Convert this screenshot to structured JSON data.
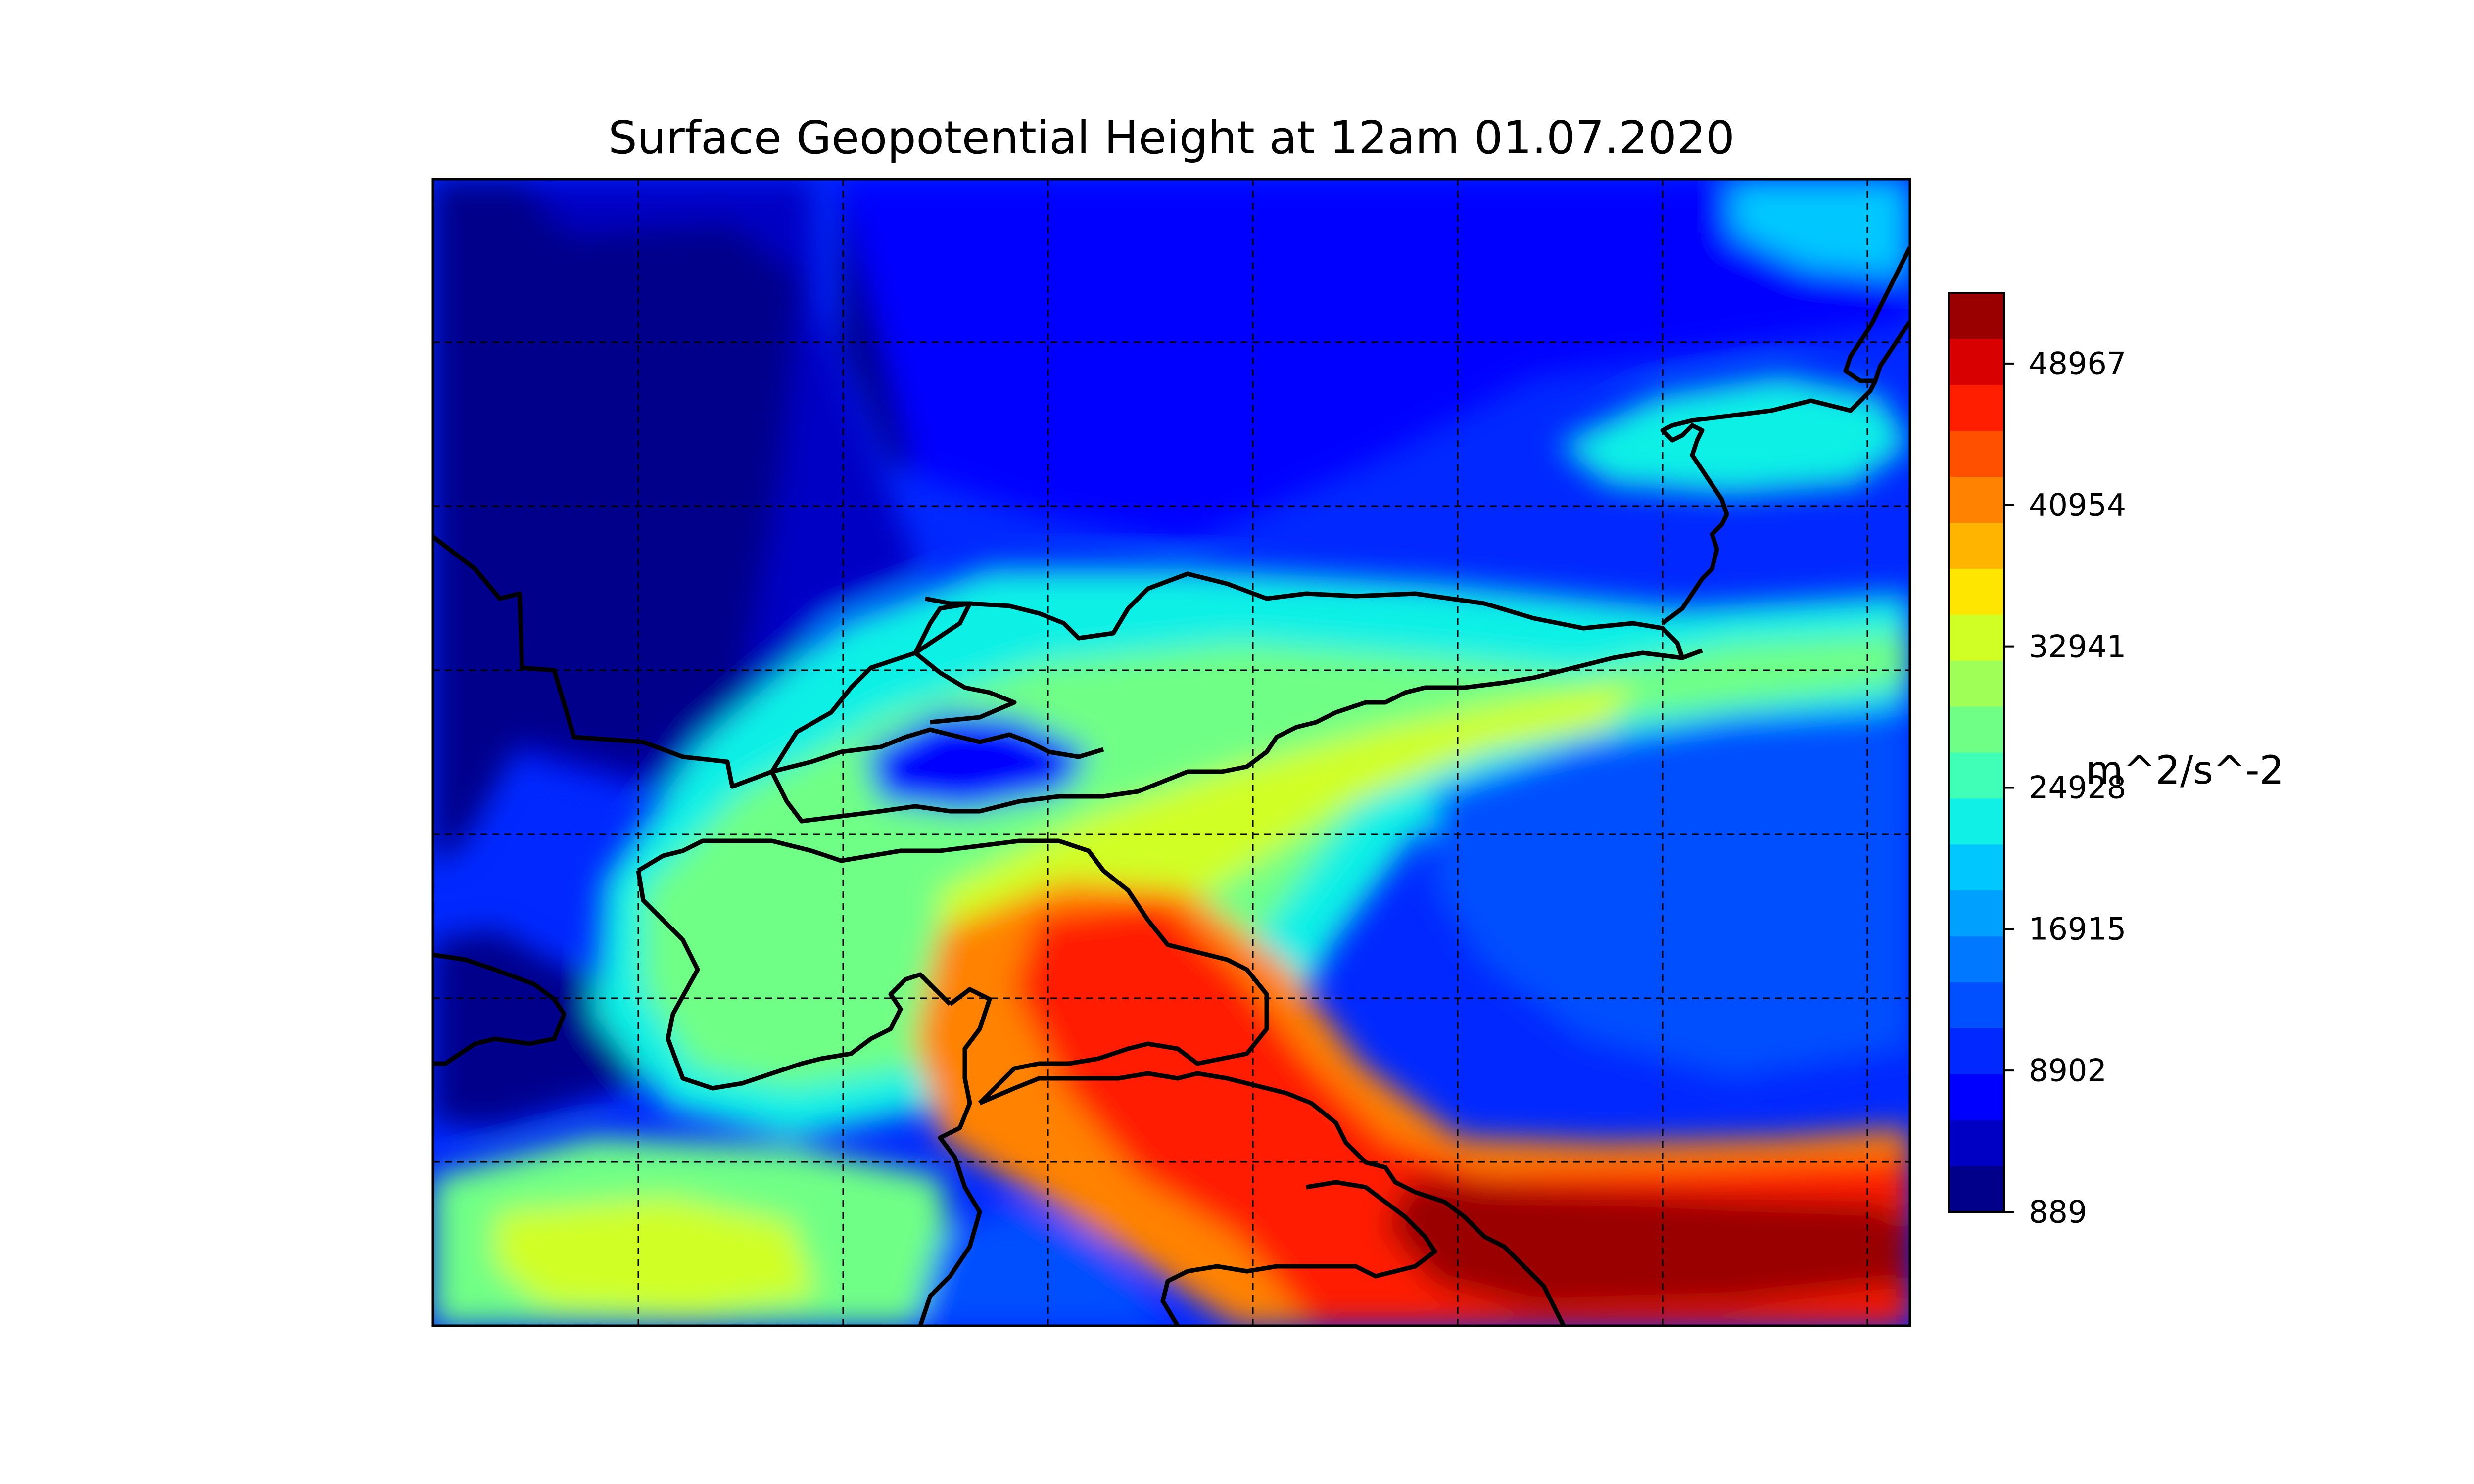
{
  "title": "Surface Geopotential Height at 12am 01.07.2020",
  "colorbar": {
    "unit_label": "m^2/s^-2",
    "tick_labels": [
      "48967",
      "40954",
      "32941",
      "24928",
      "16915",
      "8902",
      "889"
    ],
    "tick_values": [
      48967,
      40954,
      32941,
      24928,
      16915,
      8902,
      889
    ],
    "range": [
      889,
      52973
    ],
    "levels": 20,
    "colors": [
      "#00008b",
      "#0000c4",
      "#0000ff",
      "#0028ff",
      "#0050ff",
      "#0078ff",
      "#00a0ff",
      "#00c8ff",
      "#10f0e6",
      "#40ffb6",
      "#70ff86",
      "#a0ff56",
      "#d0ff26",
      "#ffe600",
      "#ffb400",
      "#ff8200",
      "#ff5000",
      "#ff1e00",
      "#d80000",
      "#9a0000"
    ]
  },
  "map": {
    "colormap": "jet",
    "gridlines": true,
    "gridline_style": "dashed",
    "borders_color": "#000000"
  }
}
